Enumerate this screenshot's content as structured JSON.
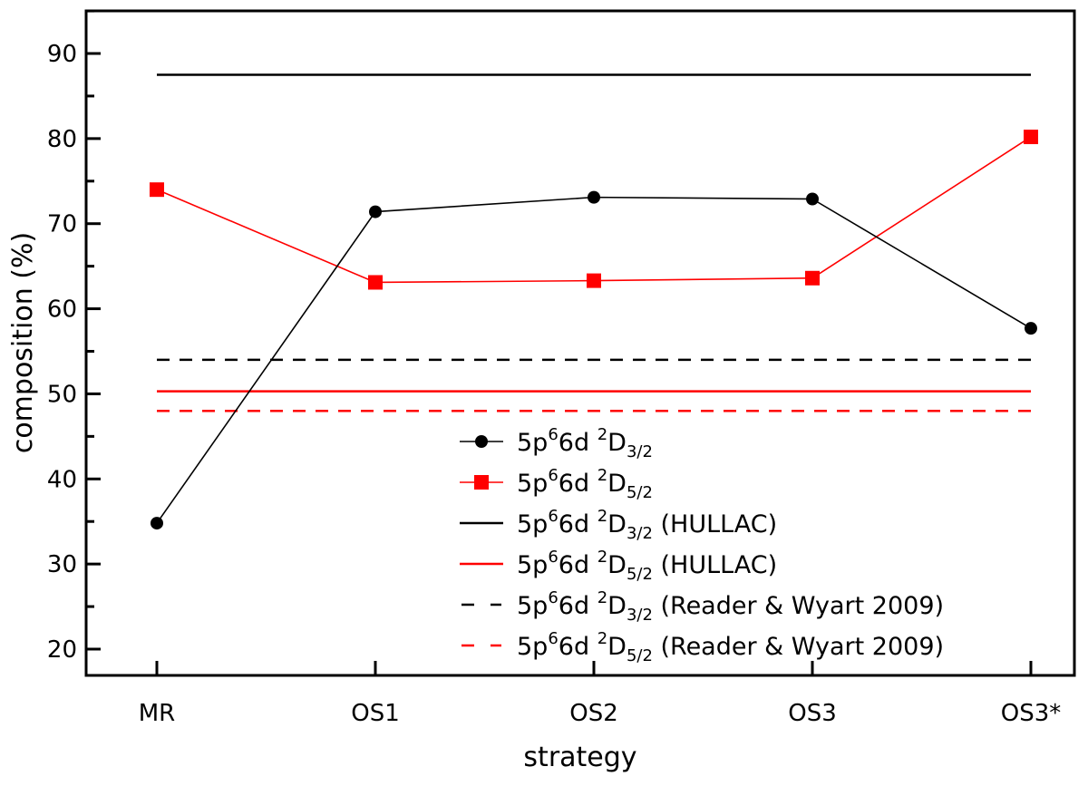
{
  "chart_data": {
    "type": "line",
    "xlabel": "strategy",
    "ylabel": "composition (%)",
    "categories": [
      "MR",
      "OS1",
      "OS2",
      "OS3",
      "OS3*"
    ],
    "ylim": [
      15,
      95
    ],
    "yticks": [
      20,
      30,
      40,
      50,
      60,
      70,
      80,
      90
    ],
    "legend_position": "lower-center",
    "series": [
      {
        "name": "5p66d 2D3/2",
        "label_parts": {
          "base": "5p",
          "sup1": "6",
          "mid": "6d ",
          "sup2": "2",
          "term": "D",
          "sub": "3/2",
          "suffix": ""
        },
        "style": "line-marker",
        "marker": "circle",
        "color": "#000000",
        "values": [
          34.8,
          71.4,
          73.1,
          72.9,
          57.7
        ]
      },
      {
        "name": "5p66d 2D5/2",
        "label_parts": {
          "base": "5p",
          "sup1": "6",
          "mid": "6d ",
          "sup2": "2",
          "term": "D",
          "sub": "5/2",
          "suffix": ""
        },
        "style": "line-marker",
        "marker": "square",
        "color": "#ff0000",
        "values": [
          74.0,
          63.1,
          63.3,
          63.6,
          80.2
        ]
      },
      {
        "name": "5p66d 2D3/2 (HULLAC)",
        "label_parts": {
          "base": "5p",
          "sup1": "6",
          "mid": "6d ",
          "sup2": "2",
          "term": "D",
          "sub": "3/2",
          "suffix": " (HULLAC)"
        },
        "style": "solid",
        "color": "#000000",
        "values": [
          87.5,
          87.5,
          87.5,
          87.5,
          87.5
        ]
      },
      {
        "name": "5p66d 2D5/2 (HULLAC)",
        "label_parts": {
          "base": "5p",
          "sup1": "6",
          "mid": "6d ",
          "sup2": "2",
          "term": "D",
          "sub": "5/2",
          "suffix": " (HULLAC)"
        },
        "style": "solid",
        "color": "#ff0000",
        "values": [
          50.3,
          50.3,
          50.3,
          50.3,
          50.3
        ]
      },
      {
        "name": "5p66d 2D3/2 (Reader & Wyart 2009)",
        "label_parts": {
          "base": "5p",
          "sup1": "6",
          "mid": "6d ",
          "sup2": "2",
          "term": "D",
          "sub": "3/2",
          "suffix": " (Reader & Wyart 2009)"
        },
        "style": "dashed",
        "color": "#000000",
        "values": [
          54.0,
          54.0,
          54.0,
          54.0,
          54.0
        ]
      },
      {
        "name": "5p66d 2D5/2 (Reader & Wyart 2009)",
        "label_parts": {
          "base": "5p",
          "sup1": "6",
          "mid": "6d ",
          "sup2": "2",
          "term": "D",
          "sub": "5/2",
          "suffix": " (Reader & Wyart 2009)"
        },
        "style": "dashed",
        "color": "#ff0000",
        "values": [
          48.0,
          48.0,
          48.0,
          48.0,
          48.0
        ]
      }
    ]
  }
}
